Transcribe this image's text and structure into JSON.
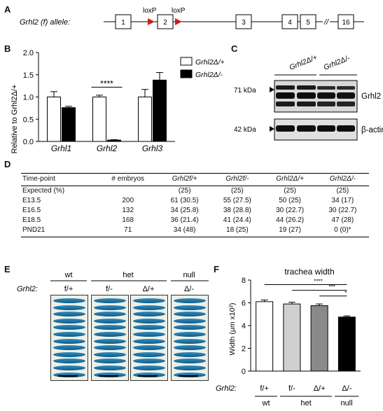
{
  "panels": {
    "A": "A",
    "B": "B",
    "C": "C",
    "D": "D",
    "E": "E",
    "F": "F"
  },
  "panelA": {
    "allele_label": "Grhl2 (f) allele:",
    "loxp": "loxP",
    "exons": [
      "1",
      "2",
      "3",
      "4",
      "5",
      "16"
    ],
    "break_mark": "//"
  },
  "panelB": {
    "legend": [
      "Grhl2Δ/+",
      "Grhl2Δ/-"
    ],
    "significance": "****",
    "chart_data": {
      "type": "bar",
      "categories": [
        "Grhl1",
        "Grhl2",
        "Grhl3"
      ],
      "series": [
        {
          "name": "Grhl2Δ/+",
          "values": [
            1.0,
            1.0,
            1.0
          ],
          "errors": [
            0.12,
            0.04,
            0.17
          ],
          "color": "#ffffff"
        },
        {
          "name": "Grhl2Δ/-",
          "values": [
            0.76,
            0.03,
            1.38
          ],
          "errors": [
            0.03,
            0.01,
            0.17
          ],
          "color": "#000000"
        }
      ],
      "ylabel": "Relative to Grhl2Δ/+",
      "ylim": [
        0,
        2.0
      ],
      "yticks": [
        "0.0",
        "0.5",
        "1.0",
        "1.5",
        "2.0"
      ]
    }
  },
  "panelC": {
    "lanes": [
      "Grhl2Δ/+",
      "Grhl2Δ/-"
    ],
    "markers": [
      "71 kDa",
      "42 kDa"
    ],
    "bands": [
      "Grhl2",
      "β-actin"
    ]
  },
  "panelD": {
    "headers": [
      "Time-point",
      "# embryos",
      "Grhl2f/+",
      "Grhl2f/-",
      "Grhl2Δ/+",
      "Grhl2Δ/-"
    ],
    "rows": [
      [
        "Expected (%)",
        "",
        "(25)",
        "(25)",
        "(25)",
        "(25)"
      ],
      [
        "E13.5",
        "200",
        "61 (30.5)",
        "55 (27.5)",
        "50 (25)",
        "34 (17)"
      ],
      [
        "E16.5",
        "132",
        "34 (25.8)",
        "38 (28.8)",
        "30 (22.7)",
        "30 (22.7)"
      ],
      [
        "E18.5",
        "168",
        "36 (21.4)",
        "41 (24.4)",
        "44 (26.2)",
        "47 (28)"
      ],
      [
        "PND21",
        "71",
        "34 (48)",
        "18 (25)",
        "19 (27)",
        "0 (0)*"
      ]
    ]
  },
  "panelE": {
    "groups": [
      "wt",
      "het",
      "null"
    ],
    "genotype_label": "Grhl2:",
    "genotypes": [
      "f/+",
      "f/-",
      "Δ/+",
      "Δ/-"
    ]
  },
  "panelF": {
    "title": "trachea width",
    "sig": [
      "****",
      "***",
      "*"
    ],
    "genotype_label": "Grhl2:",
    "groups": [
      "wt",
      "het",
      "null"
    ],
    "chart_data": {
      "type": "bar",
      "categories": [
        "f/+",
        "f/-",
        "Δ/+",
        "Δ/-"
      ],
      "values": [
        6.1,
        5.9,
        5.75,
        4.75
      ],
      "errors": [
        0.15,
        0.15,
        0.15,
        0.1
      ],
      "colors": [
        "#ffffff",
        "#d0d0d0",
        "#8a8a8a",
        "#000000"
      ],
      "ylabel": "Width (μm x10²)",
      "ylim": [
        0,
        8
      ],
      "yticks": [
        "0",
        "2",
        "4",
        "6",
        "8"
      ]
    }
  }
}
